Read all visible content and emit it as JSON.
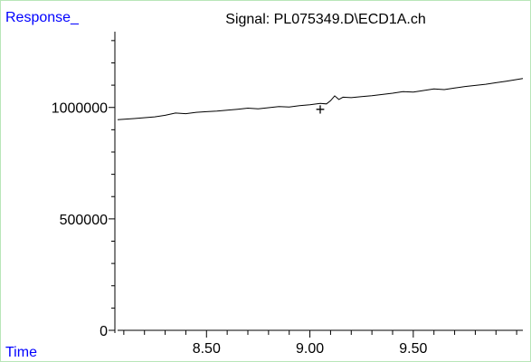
{
  "chart_data": {
    "type": "line",
    "title": "Signal: PL075349.D\\ECD1A.ch",
    "ylabel": "Response_",
    "xlabel": "Time",
    "xlim": [
      8.07,
      10.03
    ],
    "ylim": [
      0,
      1340000
    ],
    "x_ticks": [
      8.5,
      9.0,
      9.5
    ],
    "x_tick_labels": [
      "8.50",
      "9.00",
      "9.50"
    ],
    "x_minor_step": 0.1,
    "y_ticks": [
      0,
      500000,
      1000000
    ],
    "y_tick_labels": [
      "0",
      "500000",
      "1000000"
    ],
    "y_minor_step": 100000,
    "grid": false,
    "series": [
      {
        "x": [
          8.07,
          8.15,
          8.25,
          8.3,
          8.35,
          8.4,
          8.45,
          8.5,
          8.55,
          8.6,
          8.65,
          8.7,
          8.75,
          8.8,
          8.85,
          8.9,
          8.95,
          9.0,
          9.05,
          9.08,
          9.1,
          9.12,
          9.14,
          9.16,
          9.2,
          9.25,
          9.3,
          9.35,
          9.4,
          9.45,
          9.5,
          9.55,
          9.6,
          9.65,
          9.7,
          9.75,
          9.8,
          9.85,
          9.9,
          9.95,
          10.03
        ],
        "values": [
          945000,
          950000,
          958000,
          965000,
          975000,
          972000,
          978000,
          981000,
          984000,
          988000,
          992000,
          997000,
          994000,
          999000,
          1004000,
          1002000,
          1008000,
          1012000,
          1018000,
          1016000,
          1030000,
          1052000,
          1036000,
          1046000,
          1044000,
          1049000,
          1053000,
          1058000,
          1064000,
          1071000,
          1069000,
          1076000,
          1083000,
          1080000,
          1087000,
          1094000,
          1099000,
          1104000,
          1111000,
          1118000,
          1130000
        ],
        "color": "#000000"
      }
    ],
    "annotations": [
      {
        "text": "+",
        "x": 9.05,
        "y": 990000
      }
    ]
  }
}
